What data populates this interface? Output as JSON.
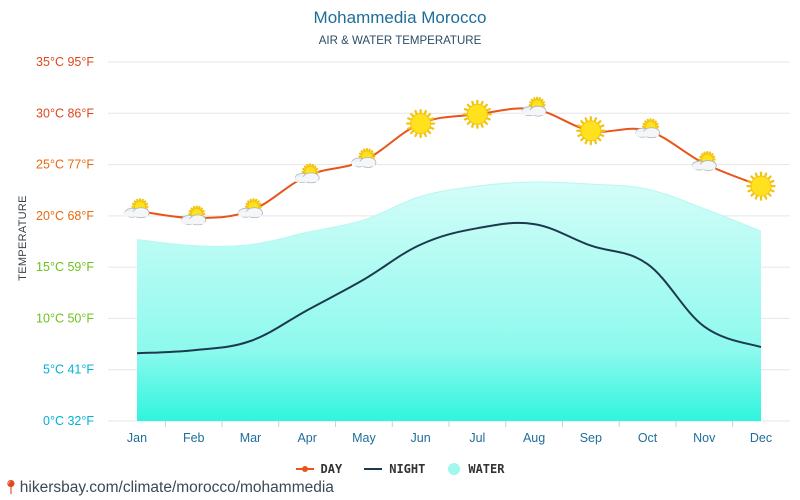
{
  "header": {
    "title": "Mohammedia Morocco",
    "subtitle": "AIR & WATER TEMPERATURE"
  },
  "footer": {
    "url": "hikersbay.com/climate/morocco/mohammedia",
    "pin_icon": "map-pin-icon"
  },
  "legend": {
    "day": "DAY",
    "night": "NIGHT",
    "water": "WATER"
  },
  "colors": {
    "day": "#e8541a",
    "night": "#1c3a4e",
    "water_top": "#c9fbf6",
    "water_bottom": "#2ff5de",
    "sun": "#ffe11d",
    "grid": "#e6e6e6"
  },
  "chart_data": {
    "type": "line",
    "title": "Mohammedia Morocco",
    "subtitle": "AIR & WATER TEMPERATURE",
    "ylabel": "TEMPERATURE",
    "xlabel": "",
    "categories": [
      "Jan",
      "Feb",
      "Mar",
      "Apr",
      "May",
      "Jun",
      "Jul",
      "Aug",
      "Sep",
      "Oct",
      "Nov",
      "Dec"
    ],
    "ylim": [
      0,
      35
    ],
    "yticks": [
      {
        "value": 0,
        "label": "0°C 32°F",
        "color": "#00b3d6"
      },
      {
        "value": 5,
        "label": "5°C 41°F",
        "color": "#00b3d6"
      },
      {
        "value": 10,
        "label": "10°C 50°F",
        "color": "#6ec21a"
      },
      {
        "value": 15,
        "label": "15°C 59°F",
        "color": "#6ec21a"
      },
      {
        "value": 20,
        "label": "20°C 68°F",
        "color": "#e86a10"
      },
      {
        "value": 25,
        "label": "25°C 77°F",
        "color": "#e86a10"
      },
      {
        "value": 30,
        "label": "30°C 86°F",
        "color": "#e0461e"
      },
      {
        "value": 35,
        "label": "35°C 95°F",
        "color": "#e0461e"
      }
    ],
    "grid": true,
    "legend_position": "bottom",
    "series": [
      {
        "name": "DAY",
        "color": "#e8541a",
        "values": [
          20.5,
          19.8,
          20.5,
          23.9,
          25.4,
          29.0,
          29.9,
          30.4,
          28.3,
          28.3,
          25.1,
          22.9
        ]
      },
      {
        "name": "NIGHT",
        "color": "#1c3a4e",
        "values": [
          6.6,
          6.9,
          7.8,
          10.8,
          13.8,
          17.2,
          18.8,
          19.2,
          17.1,
          15.3,
          9.2,
          7.2
        ]
      },
      {
        "name": "WATER",
        "color": "#2ff5de",
        "values": [
          17.7,
          17.1,
          17.2,
          18.4,
          19.6,
          21.9,
          22.9,
          23.3,
          23.1,
          22.6,
          20.7,
          18.5
        ]
      }
    ],
    "day_icons": [
      "partly-cloudy-icon",
      "partly-cloudy-icon",
      "partly-cloudy-icon",
      "partly-cloudy-icon",
      "partly-cloudy-icon",
      "sun-icon",
      "sun-icon",
      "partly-cloudy-icon",
      "sun-icon",
      "partly-cloudy-icon",
      "partly-cloudy-icon",
      "sun-icon"
    ]
  }
}
